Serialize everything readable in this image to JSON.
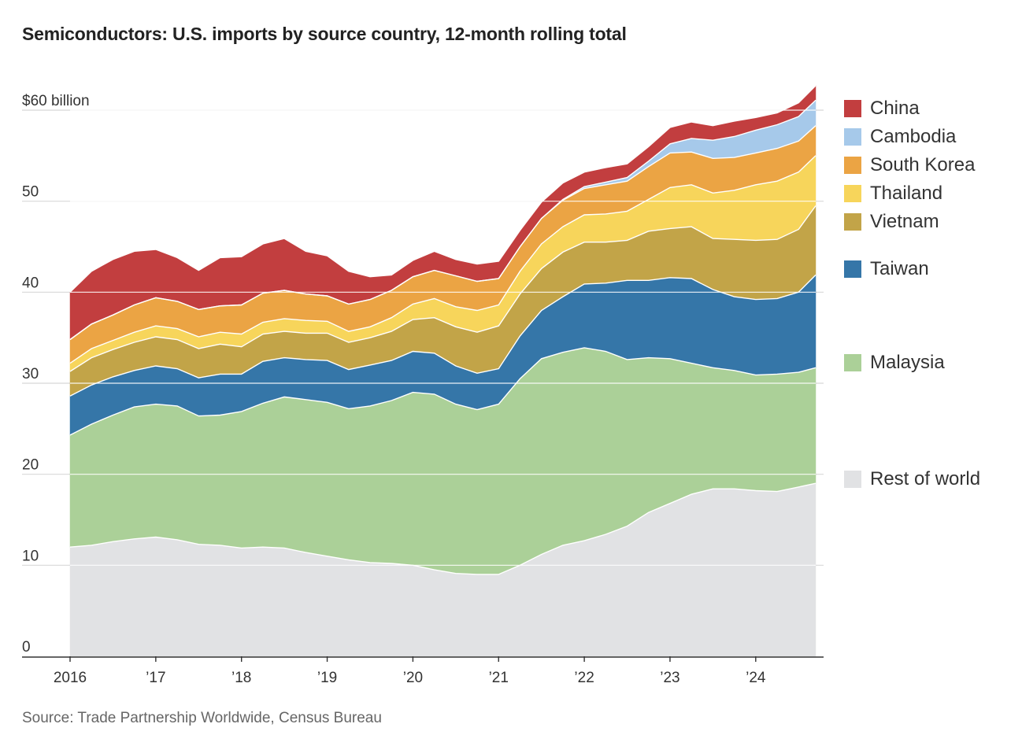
{
  "title": "Semiconductors: U.S. imports by source country, 12-month rolling total",
  "source": "Source: Trade Partnership Worldwide, Census Bureau",
  "chart_data": {
    "type": "area",
    "stacked": true,
    "title": "Semiconductors: U.S. imports by source country, 12-month rolling total",
    "ylim": [
      0,
      60
    ],
    "ylabel": "$60 billion",
    "yticks": [
      0,
      10,
      20,
      30,
      40,
      50,
      60
    ],
    "ytick_labels": [
      "0",
      "10",
      "20",
      "30",
      "40",
      "50",
      "$60 billion"
    ],
    "grid": true,
    "legend_position": "right",
    "xticks": [
      2016,
      2017,
      2018,
      2019,
      2020,
      2021,
      2022,
      2023,
      2024
    ],
    "xtick_labels": [
      "2016",
      "’17",
      "’18",
      "’19",
      "’20",
      "’21",
      "’22",
      "’23",
      "’24"
    ],
    "x": [
      2016.0,
      2016.25,
      2016.5,
      2016.75,
      2017.0,
      2017.25,
      2017.5,
      2017.75,
      2018.0,
      2018.25,
      2018.5,
      2018.75,
      2019.0,
      2019.25,
      2019.5,
      2019.75,
      2020.0,
      2020.25,
      2020.5,
      2020.75,
      2021.0,
      2021.25,
      2021.5,
      2021.75,
      2022.0,
      2022.25,
      2022.5,
      2022.75,
      2023.0,
      2023.25,
      2023.5,
      2023.75,
      2024.0,
      2024.25,
      2024.5,
      2024.7
    ],
    "series": [
      {
        "name": "Rest of world",
        "color": "#e1e2e4",
        "values": [
          12.0,
          12.2,
          12.6,
          12.9,
          13.1,
          12.8,
          12.3,
          12.2,
          11.9,
          12.0,
          11.9,
          11.4,
          11.0,
          10.6,
          10.3,
          10.2,
          10.0,
          9.5,
          9.1,
          9.0,
          9.0,
          10.0,
          11.2,
          12.2,
          12.7,
          13.4,
          14.3,
          15.8,
          16.8,
          17.8,
          18.4,
          18.4,
          18.2,
          18.1,
          18.6,
          19.0
        ]
      },
      {
        "name": "Malaysia",
        "color": "#abd098",
        "values": [
          12.3,
          13.3,
          13.9,
          14.5,
          14.6,
          14.7,
          14.1,
          14.3,
          15.0,
          15.8,
          16.6,
          16.8,
          16.9,
          16.6,
          17.2,
          17.9,
          19.0,
          19.3,
          18.6,
          18.1,
          18.7,
          20.5,
          21.5,
          21.2,
          21.2,
          20.1,
          18.3,
          17.0,
          15.9,
          14.4,
          13.3,
          13.0,
          12.7,
          12.9,
          12.6,
          12.7
        ]
      },
      {
        "name": "Taiwan",
        "color": "#3576a8",
        "values": [
          4.3,
          4.3,
          4.2,
          4.0,
          4.2,
          4.1,
          4.2,
          4.5,
          4.1,
          4.6,
          4.3,
          4.4,
          4.6,
          4.3,
          4.5,
          4.4,
          4.5,
          4.5,
          4.2,
          4.0,
          3.9,
          4.7,
          5.3,
          6.1,
          7.0,
          7.5,
          8.7,
          8.5,
          8.9,
          9.3,
          8.6,
          8.1,
          8.3,
          8.3,
          8.8,
          10.2
        ]
      },
      {
        "name": "Vietnam",
        "color": "#c2a448",
        "values": [
          2.7,
          3.0,
          3.0,
          3.1,
          3.2,
          3.2,
          3.2,
          3.3,
          3.0,
          3.0,
          2.9,
          2.9,
          3.0,
          3.0,
          3.0,
          3.2,
          3.5,
          3.9,
          4.3,
          4.5,
          4.7,
          4.6,
          4.6,
          4.9,
          4.6,
          4.5,
          4.4,
          5.4,
          5.4,
          5.7,
          5.6,
          6.3,
          6.5,
          6.5,
          6.9,
          7.6
        ]
      },
      {
        "name": "Thailand",
        "color": "#f7d55b",
        "values": [
          0.9,
          1.0,
          1.0,
          1.1,
          1.2,
          1.2,
          1.3,
          1.3,
          1.4,
          1.3,
          1.4,
          1.4,
          1.3,
          1.2,
          1.2,
          1.5,
          1.7,
          2.1,
          2.2,
          2.4,
          2.3,
          2.5,
          2.7,
          2.8,
          3.0,
          3.1,
          3.2,
          3.5,
          4.5,
          4.6,
          5.0,
          5.4,
          6.1,
          6.4,
          6.3,
          5.5
        ]
      },
      {
        "name": "South Korea",
        "color": "#eba444",
        "values": [
          2.6,
          2.7,
          2.8,
          3.0,
          3.1,
          3.0,
          3.0,
          2.9,
          3.2,
          3.2,
          3.1,
          2.9,
          2.8,
          3.0,
          3.0,
          3.0,
          3.0,
          3.1,
          3.4,
          3.2,
          2.9,
          2.7,
          2.8,
          2.9,
          2.9,
          3.2,
          3.3,
          3.6,
          3.8,
          3.6,
          3.8,
          3.6,
          3.5,
          3.6,
          3.4,
          3.3
        ]
      },
      {
        "name": "Cambodia",
        "color": "#a6c9ea",
        "values": [
          0.0,
          0.0,
          0.0,
          0.0,
          0.0,
          0.0,
          0.0,
          0.0,
          0.0,
          0.0,
          0.0,
          0.0,
          0.0,
          0.0,
          0.0,
          0.0,
          0.0,
          0.0,
          0.0,
          0.0,
          0.0,
          0.0,
          0.0,
          0.1,
          0.2,
          0.3,
          0.4,
          0.6,
          1.0,
          1.5,
          2.0,
          2.3,
          2.5,
          2.6,
          2.7,
          2.8
        ]
      },
      {
        "name": "China",
        "color": "#c23e3f",
        "values": [
          5.2,
          5.8,
          6.1,
          5.9,
          5.3,
          4.8,
          4.3,
          5.3,
          5.3,
          5.4,
          5.7,
          4.7,
          4.4,
          3.6,
          2.5,
          1.7,
          1.8,
          2.1,
          1.8,
          1.9,
          1.9,
          1.8,
          1.8,
          1.8,
          1.6,
          1.6,
          1.5,
          1.6,
          1.8,
          1.8,
          1.6,
          1.7,
          1.4,
          1.3,
          1.5,
          1.6
        ]
      }
    ]
  }
}
